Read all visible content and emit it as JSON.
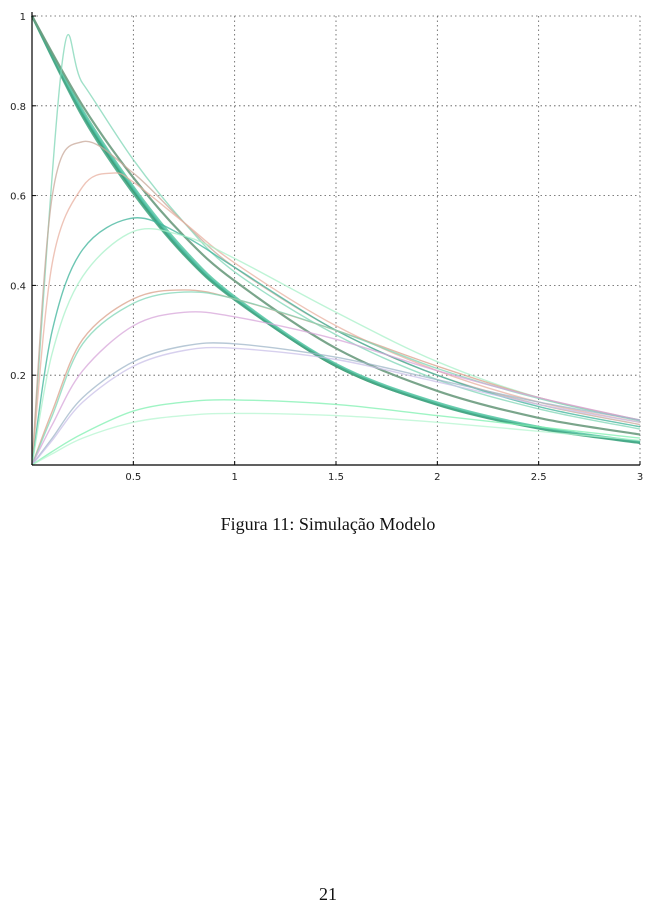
{
  "caption": "Figura 11: Simulação Modelo",
  "page_number": "21",
  "chart_data": {
    "type": "line",
    "title": "",
    "xlabel": "",
    "ylabel": "",
    "xlim": [
      0,
      3
    ],
    "ylim": [
      0,
      1
    ],
    "grid": true,
    "x_ticks": [
      0.5,
      1,
      1.5,
      2,
      2.5,
      3
    ],
    "x_tick_labels": [
      "0.5",
      "1",
      "1.5",
      "2",
      "2.5",
      "3"
    ],
    "y_ticks": [
      0.2,
      0.4,
      0.6,
      0.8,
      1
    ],
    "y_tick_labels": [
      "0.2",
      "0.4",
      "0.6",
      "0.8",
      "1"
    ],
    "series": [
      {
        "color": "#2e8b57",
        "values": [
          [
            0,
            1
          ],
          [
            0.25,
            0.78
          ],
          [
            0.5,
            0.61
          ],
          [
            0.75,
            0.47
          ],
          [
            1,
            0.37
          ],
          [
            1.5,
            0.22
          ],
          [
            2,
            0.135
          ],
          [
            2.5,
            0.082
          ],
          [
            3,
            0.05
          ]
        ]
      },
      {
        "color": "#3cb39a",
        "values": [
          [
            0,
            1
          ],
          [
            0.25,
            0.785
          ],
          [
            0.5,
            0.615
          ],
          [
            0.75,
            0.475
          ],
          [
            1,
            0.372
          ],
          [
            1.5,
            0.223
          ],
          [
            2,
            0.137
          ],
          [
            2.5,
            0.083
          ],
          [
            3,
            0.051
          ]
        ]
      },
      {
        "color": "#5fc9a8",
        "values": [
          [
            0,
            1
          ],
          [
            0.25,
            0.79
          ],
          [
            0.5,
            0.62
          ],
          [
            0.75,
            0.48
          ],
          [
            1,
            0.375
          ],
          [
            1.5,
            0.225
          ],
          [
            2,
            0.139
          ],
          [
            2.5,
            0.085
          ],
          [
            3,
            0.052
          ]
        ]
      },
      {
        "color": "#48a887",
        "values": [
          [
            0,
            1
          ],
          [
            0.25,
            0.775
          ],
          [
            0.5,
            0.605
          ],
          [
            0.75,
            0.468
          ],
          [
            1,
            0.368
          ],
          [
            1.5,
            0.221
          ],
          [
            2,
            0.134
          ],
          [
            2.5,
            0.081
          ],
          [
            3,
            0.049
          ]
        ]
      },
      {
        "color": "#6b9b7e",
        "values": [
          [
            0,
            1
          ],
          [
            0.25,
            0.8
          ],
          [
            0.5,
            0.64
          ],
          [
            0.75,
            0.51
          ],
          [
            1,
            0.41
          ],
          [
            1.5,
            0.26
          ],
          [
            2,
            0.165
          ],
          [
            2.5,
            0.105
          ],
          [
            3,
            0.068
          ]
        ]
      },
      {
        "color": "#7fd6b6",
        "values": [
          [
            0,
            0
          ],
          [
            0.15,
            0.9
          ],
          [
            0.25,
            0.85
          ],
          [
            0.5,
            0.68
          ],
          [
            0.75,
            0.54
          ],
          [
            1,
            0.43
          ],
          [
            1.5,
            0.29
          ],
          [
            2,
            0.19
          ],
          [
            2.5,
            0.125
          ],
          [
            3,
            0.08
          ]
        ]
      },
      {
        "color": "#c8a89a",
        "values": [
          [
            0,
            0
          ],
          [
            0.1,
            0.6
          ],
          [
            0.25,
            0.72
          ],
          [
            0.5,
            0.65
          ],
          [
            0.75,
            0.54
          ],
          [
            1,
            0.44
          ],
          [
            1.5,
            0.3
          ],
          [
            2,
            0.2
          ],
          [
            2.5,
            0.135
          ],
          [
            3,
            0.09
          ]
        ]
      },
      {
        "color": "#e8b0a0",
        "values": [
          [
            0,
            0
          ],
          [
            0.1,
            0.45
          ],
          [
            0.25,
            0.62
          ],
          [
            0.4,
            0.65
          ],
          [
            0.5,
            0.63
          ],
          [
            0.75,
            0.54
          ],
          [
            1,
            0.45
          ],
          [
            1.5,
            0.31
          ],
          [
            2,
            0.21
          ],
          [
            2.5,
            0.14
          ],
          [
            3,
            0.095
          ]
        ]
      },
      {
        "color": "#3cb39a",
        "values": [
          [
            0,
            0
          ],
          [
            0.1,
            0.3
          ],
          [
            0.25,
            0.48
          ],
          [
            0.5,
            0.55
          ],
          [
            0.75,
            0.51
          ],
          [
            1,
            0.44
          ],
          [
            1.5,
            0.3
          ],
          [
            2,
            0.2
          ],
          [
            2.5,
            0.13
          ],
          [
            3,
            0.085
          ]
        ]
      },
      {
        "color": "#a8f0c8",
        "values": [
          [
            0,
            0
          ],
          [
            0.1,
            0.25
          ],
          [
            0.25,
            0.42
          ],
          [
            0.5,
            0.52
          ],
          [
            0.75,
            0.51
          ],
          [
            1,
            0.46
          ],
          [
            1.5,
            0.34
          ],
          [
            2,
            0.23
          ],
          [
            2.5,
            0.15
          ],
          [
            3,
            0.1
          ]
        ]
      },
      {
        "color": "#d9a08a",
        "values": [
          [
            0,
            0
          ],
          [
            0.1,
            0.12
          ],
          [
            0.25,
            0.28
          ],
          [
            0.5,
            0.37
          ],
          [
            0.75,
            0.39
          ],
          [
            1,
            0.37
          ],
          [
            1.5,
            0.3
          ],
          [
            2,
            0.22
          ],
          [
            2.5,
            0.15
          ],
          [
            3,
            0.1
          ]
        ]
      },
      {
        "color": "#7fd6b6",
        "values": [
          [
            0,
            0
          ],
          [
            0.1,
            0.11
          ],
          [
            0.25,
            0.27
          ],
          [
            0.5,
            0.36
          ],
          [
            0.75,
            0.385
          ],
          [
            1,
            0.37
          ],
          [
            1.5,
            0.3
          ],
          [
            2,
            0.215
          ],
          [
            2.5,
            0.148
          ],
          [
            3,
            0.098
          ]
        ]
      },
      {
        "color": "#d7a6d9",
        "values": [
          [
            0,
            0
          ],
          [
            0.1,
            0.09
          ],
          [
            0.25,
            0.21
          ],
          [
            0.5,
            0.31
          ],
          [
            0.75,
            0.34
          ],
          [
            1,
            0.33
          ],
          [
            1.5,
            0.28
          ],
          [
            2,
            0.21
          ],
          [
            2.5,
            0.15
          ],
          [
            3,
            0.1
          ]
        ]
      },
      {
        "color": "#9fb6c8",
        "values": [
          [
            0,
            0
          ],
          [
            0.1,
            0.06
          ],
          [
            0.25,
            0.15
          ],
          [
            0.5,
            0.23
          ],
          [
            0.75,
            0.265
          ],
          [
            1,
            0.27
          ],
          [
            1.5,
            0.24
          ],
          [
            2,
            0.19
          ],
          [
            2.5,
            0.14
          ],
          [
            3,
            0.1
          ]
        ]
      },
      {
        "color": "#c9c0e8",
        "values": [
          [
            0,
            0
          ],
          [
            0.1,
            0.055
          ],
          [
            0.25,
            0.14
          ],
          [
            0.5,
            0.22
          ],
          [
            0.75,
            0.255
          ],
          [
            1,
            0.26
          ],
          [
            1.5,
            0.235
          ],
          [
            2,
            0.185
          ],
          [
            2.5,
            0.135
          ],
          [
            3,
            0.095
          ]
        ]
      },
      {
        "color": "#7ff0b0",
        "values": [
          [
            0,
            0
          ],
          [
            0.1,
            0.03
          ],
          [
            0.25,
            0.07
          ],
          [
            0.5,
            0.12
          ],
          [
            0.75,
            0.14
          ],
          [
            1,
            0.145
          ],
          [
            1.5,
            0.135
          ],
          [
            2,
            0.11
          ],
          [
            2.5,
            0.085
          ],
          [
            3,
            0.06
          ]
        ]
      },
      {
        "color": "#b6f5d0",
        "values": [
          [
            0,
            0
          ],
          [
            0.1,
            0.025
          ],
          [
            0.25,
            0.06
          ],
          [
            0.5,
            0.095
          ],
          [
            0.75,
            0.11
          ],
          [
            1,
            0.115
          ],
          [
            1.5,
            0.11
          ],
          [
            2,
            0.095
          ],
          [
            2.5,
            0.075
          ],
          [
            3,
            0.055
          ]
        ]
      }
    ]
  }
}
